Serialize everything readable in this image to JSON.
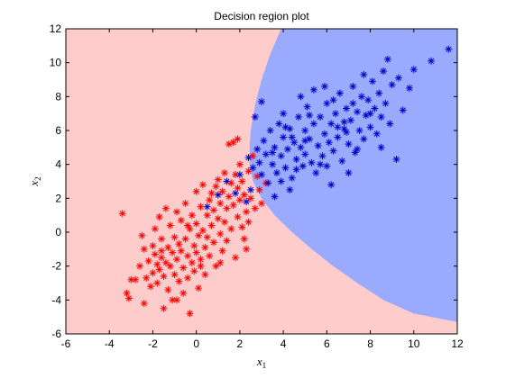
{
  "chart_data": {
    "type": "scatter",
    "title": "Decision region plot",
    "xlabel": "x",
    "xlabel_sub": "1",
    "ylabel": "x",
    "ylabel_sub": "2",
    "xlim": [
      -6,
      12
    ],
    "ylim": [
      -6,
      12
    ],
    "xticks": [
      "-6",
      "-4",
      "-2",
      "0",
      "2",
      "4",
      "6",
      "8",
      "10",
      "12"
    ],
    "yticks": [
      "-6",
      "-4",
      "-2",
      "0",
      "2",
      "4",
      "6",
      "8",
      "10",
      "12"
    ],
    "xtick_values": [
      -6,
      -4,
      -2,
      0,
      2,
      4,
      6,
      8,
      10,
      12
    ],
    "ytick_values": [
      -6,
      -4,
      -2,
      0,
      2,
      4,
      6,
      8,
      10,
      12
    ],
    "grid": false,
    "marker": "asterisk",
    "regions": [
      {
        "color": "#ffcccc"
      },
      {
        "color": "#99aaff",
        "boundary": [
          [
            3.9,
            12
          ],
          [
            3.4,
            10.5
          ],
          [
            3.0,
            9.0
          ],
          [
            2.7,
            7.5
          ],
          [
            2.5,
            6.0
          ],
          [
            2.45,
            5.0
          ],
          [
            2.45,
            4.0
          ],
          [
            2.6,
            3.0
          ],
          [
            3.0,
            2.0
          ],
          [
            3.6,
            1.0
          ],
          [
            4.4,
            0.0
          ],
          [
            5.3,
            -1.0
          ],
          [
            6.3,
            -2.0
          ],
          [
            7.4,
            -3.0
          ],
          [
            8.6,
            -4.0
          ],
          [
            10.0,
            -4.8
          ],
          [
            12,
            -5.3
          ]
        ]
      }
    ],
    "series": [
      {
        "color": "#ff0000",
        "points": [
          [
            -3.4,
            1.1
          ],
          [
            -3.2,
            -3.6
          ],
          [
            -3.1,
            -3.9
          ],
          [
            -3.0,
            -2.8
          ],
          [
            -2.8,
            -2.8
          ],
          [
            -2.6,
            -2.0
          ],
          [
            -2.5,
            -0.2
          ],
          [
            -2.4,
            -1.0
          ],
          [
            -2.4,
            -4.2
          ],
          [
            -2.3,
            -2.7
          ],
          [
            -2.2,
            -1.7
          ],
          [
            -2.1,
            -3.2
          ],
          [
            -2.0,
            -2.4
          ],
          [
            -2.0,
            -0.8
          ],
          [
            -1.9,
            -1.3
          ],
          [
            -1.9,
            0.2
          ],
          [
            -1.8,
            -1.9
          ],
          [
            -1.8,
            -3.0
          ],
          [
            -1.7,
            -2.2
          ],
          [
            -1.7,
            0.9
          ],
          [
            -1.6,
            -1.5
          ],
          [
            -1.6,
            -0.4
          ],
          [
            -1.5,
            -2.6
          ],
          [
            -1.5,
            -4.5
          ],
          [
            -1.4,
            -1.8
          ],
          [
            -1.4,
            1.4
          ],
          [
            -1.3,
            -0.9
          ],
          [
            -1.3,
            -3.4
          ],
          [
            -1.2,
            -2.0
          ],
          [
            -1.2,
            0.4
          ],
          [
            -1.1,
            -1.2
          ],
          [
            -1.1,
            -4.0
          ],
          [
            -1.0,
            -2.5
          ],
          [
            -1.0,
            -0.3
          ],
          [
            -0.9,
            -1.6
          ],
          [
            -0.9,
            1.2
          ],
          [
            -0.8,
            -0.7
          ],
          [
            -0.8,
            -2.9
          ],
          [
            -0.7,
            -1.1
          ],
          [
            -0.7,
            0.7
          ],
          [
            -0.6,
            -2.1
          ],
          [
            -0.6,
            -3.6
          ],
          [
            -0.5,
            -0.4
          ],
          [
            -0.5,
            1.7
          ],
          [
            -0.4,
            -1.4
          ],
          [
            -0.4,
            -2.7
          ],
          [
            -0.3,
            0.2
          ],
          [
            -0.3,
            -4.8
          ],
          [
            -0.2,
            -1.8
          ],
          [
            -0.2,
            1.0
          ],
          [
            -0.1,
            -0.8
          ],
          [
            -0.1,
            -2.3
          ],
          [
            0.0,
            0.5
          ],
          [
            0.0,
            -1.2
          ],
          [
            0.0,
            2.4
          ],
          [
            0.1,
            -3.3
          ],
          [
            0.1,
            -0.2
          ],
          [
            0.2,
            1.5
          ],
          [
            0.2,
            -1.6
          ],
          [
            0.3,
            0.1
          ],
          [
            0.3,
            2.8
          ],
          [
            0.4,
            -0.9
          ],
          [
            0.4,
            -2.5
          ],
          [
            0.5,
            1.0
          ],
          [
            0.5,
            -0.3
          ],
          [
            0.6,
            1.9
          ],
          [
            0.6,
            -1.4
          ],
          [
            0.7,
            0.4
          ],
          [
            0.7,
            2.3
          ],
          [
            0.8,
            -0.6
          ],
          [
            0.8,
            1.3
          ],
          [
            0.9,
            2.7
          ],
          [
            0.9,
            -2.0
          ],
          [
            1.0,
            0.8
          ],
          [
            1.0,
            3.1
          ],
          [
            1.1,
            -0.1
          ],
          [
            1.1,
            1.7
          ],
          [
            1.2,
            2.4
          ],
          [
            1.2,
            -1.1
          ],
          [
            1.3,
            0.6
          ],
          [
            1.3,
            3.5
          ],
          [
            1.4,
            1.4
          ],
          [
            1.4,
            -0.5
          ],
          [
            1.5,
            2.1
          ],
          [
            1.5,
            5.2
          ],
          [
            1.6,
            0.2
          ],
          [
            1.6,
            2.9
          ],
          [
            1.7,
            1.6
          ],
          [
            1.7,
            5.3
          ],
          [
            1.8,
            -1.5
          ],
          [
            1.8,
            3.4
          ],
          [
            1.9,
            0.9
          ],
          [
            1.9,
            2.6
          ],
          [
            2.0,
            1.9
          ],
          [
            2.0,
            4.0
          ],
          [
            2.1,
            0.3
          ],
          [
            2.1,
            3.0
          ],
          [
            2.2,
            2.2
          ],
          [
            2.2,
            -0.4
          ],
          [
            2.3,
            1.2
          ],
          [
            2.4,
            3.6
          ],
          [
            2.4,
            0.6
          ],
          [
            2.5,
            2.0
          ],
          [
            2.6,
            4.5
          ],
          [
            2.7,
            1.4
          ],
          [
            2.8,
            3.3
          ],
          [
            2.9,
            2.5
          ],
          [
            3.0,
            1.7
          ],
          [
            3.2,
            2.9
          ],
          [
            1.9,
            5.5
          ],
          [
            -0.9,
            -4.0
          ],
          [
            -1.6,
            -1.1
          ],
          [
            0.2,
            -2.0
          ],
          [
            -0.4,
            0.4
          ],
          [
            1.1,
            -1.8
          ],
          [
            2.3,
            -1.0
          ]
        ]
      },
      {
        "color": "#0000cc",
        "points": [
          [
            0.5,
            1.5
          ],
          [
            1.0,
            2.2
          ],
          [
            1.4,
            3.0
          ],
          [
            1.8,
            2.3
          ],
          [
            2.0,
            3.4
          ],
          [
            2.3,
            1.8
          ],
          [
            2.5,
            2.5
          ],
          [
            2.6,
            3.8
          ],
          [
            2.7,
            6.8
          ],
          [
            2.8,
            4.9
          ],
          [
            2.9,
            4.1
          ],
          [
            3.0,
            3.4
          ],
          [
            3.1,
            5.4
          ],
          [
            3.2,
            4.6
          ],
          [
            3.3,
            2.9
          ],
          [
            3.4,
            6.0
          ],
          [
            3.5,
            4.0
          ],
          [
            3.6,
            5.0
          ],
          [
            3.7,
            3.5
          ],
          [
            3.8,
            6.4
          ],
          [
            3.9,
            4.5
          ],
          [
            4.0,
            5.6
          ],
          [
            4.0,
            7.0
          ],
          [
            4.1,
            3.8
          ],
          [
            4.2,
            4.9
          ],
          [
            4.3,
            6.1
          ],
          [
            4.4,
            3.2
          ],
          [
            4.5,
            5.3
          ],
          [
            4.6,
            4.3
          ],
          [
            4.7,
            6.8
          ],
          [
            4.8,
            5.0
          ],
          [
            4.9,
            3.9
          ],
          [
            5.0,
            6.0
          ],
          [
            5.0,
            4.6
          ],
          [
            5.1,
            7.4
          ],
          [
            5.2,
            5.5
          ],
          [
            5.3,
            4.1
          ],
          [
            5.4,
            6.4
          ],
          [
            5.5,
            3.5
          ],
          [
            5.6,
            5.1
          ],
          [
            5.7,
            6.8
          ],
          [
            5.8,
            4.5
          ],
          [
            5.9,
            5.8
          ],
          [
            6.0,
            7.6
          ],
          [
            6.0,
            3.9
          ],
          [
            6.1,
            5.3
          ],
          [
            6.2,
            6.4
          ],
          [
            6.3,
            4.8
          ],
          [
            6.4,
            7.0
          ],
          [
            6.5,
            5.6
          ],
          [
            6.6,
            8.2
          ],
          [
            6.7,
            4.2
          ],
          [
            6.8,
            6.1
          ],
          [
            6.9,
            7.3
          ],
          [
            7.0,
            5.2
          ],
          [
            7.1,
            6.6
          ],
          [
            7.2,
            8.6
          ],
          [
            7.3,
            4.7
          ],
          [
            7.4,
            7.1
          ],
          [
            7.5,
            6.0
          ],
          [
            7.6,
            8.0
          ],
          [
            7.7,
            5.5
          ],
          [
            7.8,
            6.9
          ],
          [
            7.9,
            7.8
          ],
          [
            8.0,
            6.2
          ],
          [
            8.1,
            8.9
          ],
          [
            8.2,
            7.3
          ],
          [
            8.3,
            5.8
          ],
          [
            8.4,
            8.2
          ],
          [
            8.5,
            6.8
          ],
          [
            8.6,
            9.5
          ],
          [
            8.7,
            7.6
          ],
          [
            8.8,
            10.2
          ],
          [
            8.9,
            6.4
          ],
          [
            9.0,
            8.7
          ],
          [
            9.2,
            4.3
          ],
          [
            9.3,
            9.1
          ],
          [
            9.5,
            7.2
          ],
          [
            9.8,
            8.5
          ],
          [
            10.0,
            9.6
          ],
          [
            10.8,
            10.1
          ],
          [
            11.6,
            10.8
          ],
          [
            3.6,
            2.1
          ],
          [
            4.3,
            2.5
          ],
          [
            5.4,
            8.4
          ],
          [
            6.2,
            2.8
          ],
          [
            3.0,
            7.7
          ],
          [
            4.8,
            8.0
          ],
          [
            5.9,
            8.6
          ],
          [
            7.0,
            3.5
          ],
          [
            7.7,
            9.3
          ],
          [
            8.5,
            5.0
          ],
          [
            3.5,
            4.7
          ],
          [
            4.1,
            6.2
          ],
          [
            4.6,
            3.7
          ],
          [
            5.2,
            6.9
          ],
          [
            5.7,
            4.0
          ],
          [
            6.5,
            6.2
          ],
          [
            6.9,
            5.9
          ],
          [
            7.4,
            4.9
          ],
          [
            2.4,
            4.4
          ],
          [
            3.9,
            3.0
          ],
          [
            6.3,
            7.8
          ],
          [
            7.2,
            7.6
          ],
          [
            8.0,
            7.0
          ],
          [
            5.0,
            5.4
          ],
          [
            4.4,
            5.6
          ],
          [
            6.8,
            6.5
          ]
        ]
      }
    ]
  }
}
